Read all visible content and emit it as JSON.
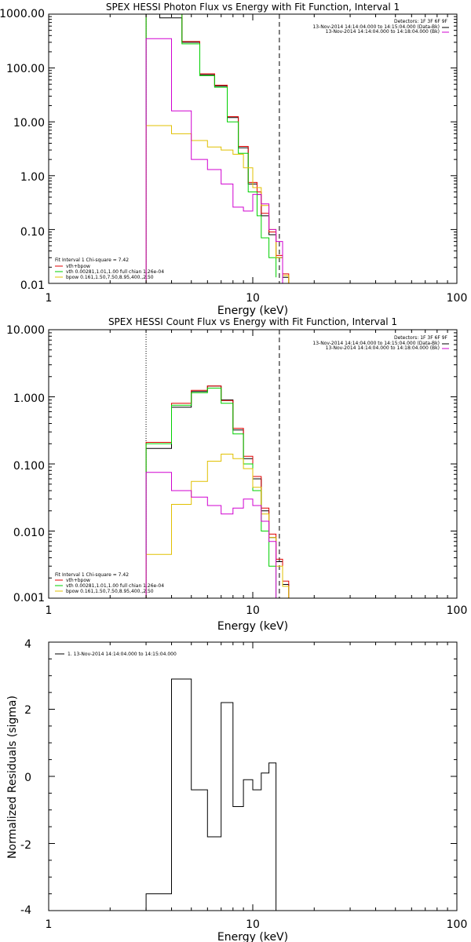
{
  "colors": {
    "total": "#000000",
    "data": "#e00000",
    "vth": "#00d000",
    "bpow": "#e0c000",
    "bk": "#d000d0"
  },
  "chart_data": [
    {
      "type": "line",
      "title": "SPEX HESSI Photon Flux vs Energy with Fit Function, Interval 1",
      "xlabel": "Energy (keV)",
      "ylabel": "",
      "xscale": "log",
      "yscale": "log",
      "xlim": [
        1,
        100
      ],
      "ylim": [
        0.01,
        1000
      ],
      "xticks": [
        "1",
        "10",
        "100"
      ],
      "yticks": [
        "0.01",
        "0.10",
        "1.00",
        "10.00",
        "100.00",
        "1000.00"
      ],
      "vlines": {
        "dotted": 3.0,
        "dashed": 13.5
      },
      "legend_right": {
        "detectors": "Detectors: 1F 3F 6F 9F",
        "entries": [
          {
            "text": "13-Nov-2014 14:14:04.000 to 14:15:04.000 (Data-Bk)",
            "color": "#000000"
          },
          {
            "text": "13-Nov-2014 14:14:04.000 to 14:18:04.000 (Bk)",
            "color": "#d000d0"
          }
        ]
      },
      "legend_left": {
        "header": "Fit Interval  1    Chi-square = 7.42",
        "entries": [
          {
            "text": "vth+bpow",
            "color": "#e00000"
          },
          {
            "text": "vth 0.00281,1.01,1.00  full chian 1.26e-04",
            "color": "#00d000"
          },
          {
            "text": "bpow 0.161,1.50,7.50,8.95,400.,2.50",
            "color": "#e0c000"
          }
        ]
      },
      "series": [
        {
          "label": "Data-Bk",
          "color": "#000000",
          "edges": [
            3.0,
            3.5,
            4.0,
            4.5,
            5.0,
            5.5,
            6.0,
            6.5,
            7.0,
            7.5,
            8.0,
            8.5,
            9.0,
            9.5,
            10.0,
            10.5,
            11.0,
            12.0,
            13.0,
            14.0,
            15.0
          ],
          "values": [
            1000,
            850,
            850,
            300,
            300,
            75,
            75,
            46,
            46,
            12,
            12,
            3.3,
            3.3,
            0.7,
            0.7,
            0.45,
            0.18,
            0.08,
            0.03,
            0.013
          ]
        },
        {
          "label": "vth+bpow",
          "color": "#e00000",
          "edges": [
            3.0,
            3.5,
            4.0,
            4.5,
            5.0,
            5.5,
            6.0,
            6.5,
            7.0,
            7.5,
            8.0,
            8.5,
            9.0,
            9.5,
            10.0,
            10.5,
            11.0,
            12.0,
            13.0,
            14.0,
            15.0
          ],
          "values": [
            1000,
            1000,
            1000,
            310,
            310,
            78,
            78,
            48,
            48,
            12.5,
            12.5,
            3.5,
            3.5,
            0.75,
            0.75,
            0.5,
            0.2,
            0.09,
            0.033,
            0.015
          ]
        },
        {
          "label": "vth",
          "color": "#00d000",
          "edges": [
            3.0,
            3.5,
            4.0,
            4.5,
            5.0,
            5.5,
            6.0,
            6.5,
            7.0,
            7.5,
            8.0,
            8.5,
            9.0,
            9.5,
            10.0,
            10.5,
            11.0,
            12.0,
            13.0
          ],
          "values": [
            1000,
            1000,
            1000,
            280,
            280,
            72,
            72,
            44,
            44,
            10,
            10,
            2.6,
            2.6,
            0.5,
            0.5,
            0.18,
            0.07,
            0.03,
            0.013
          ]
        },
        {
          "label": "bpow",
          "color": "#e0c000",
          "edges": [
            3.0,
            3.5,
            4.0,
            4.5,
            5.0,
            5.5,
            6.0,
            6.5,
            7.0,
            7.5,
            8.0,
            8.5,
            9.0,
            9.5,
            10.0,
            10.5,
            11.0,
            12.0,
            13.0,
            14.0,
            15.0,
            16.0
          ],
          "values": [
            8.5,
            8.5,
            6,
            6,
            4.5,
            4.5,
            3.4,
            3.4,
            3.0,
            3.0,
            2.5,
            2.5,
            1.4,
            1.4,
            0.6,
            0.6,
            0.28,
            0.1,
            0.03,
            0.014,
            0.009
          ]
        },
        {
          "label": "Bk",
          "color": "#d000d0",
          "edges": [
            3.0,
            3.5,
            4.0,
            4.5,
            5.0,
            5.5,
            6.0,
            6.5,
            7.0,
            7.5,
            8.0,
            8.5,
            9.0,
            9.5,
            10.0,
            10.5,
            11.0,
            12.0,
            13.0,
            14.0
          ],
          "values": [
            350,
            350,
            16,
            16,
            2.0,
            2.0,
            1.3,
            1.3,
            0.7,
            0.7,
            0.26,
            0.26,
            0.22,
            0.22,
            0.45,
            0.45,
            0.3,
            0.1,
            0.06
          ]
        }
      ]
    },
    {
      "type": "line",
      "title": "SPEX HESSI Count Flux vs Energy with Fit Function, Interval 1",
      "xlabel": "Energy (keV)",
      "ylabel": "",
      "xscale": "log",
      "yscale": "log",
      "xlim": [
        1,
        100
      ],
      "ylim": [
        0.001,
        10
      ],
      "xticks": [
        "1",
        "10",
        "100"
      ],
      "yticks": [
        "0.001",
        "0.010",
        "0.100",
        "1.000",
        "10.000"
      ],
      "vlines": {
        "dotted": 3.0,
        "dashed": 13.5
      },
      "legend_right": {
        "detectors": "Detectors: 1F 3F 6F 9F",
        "entries": [
          {
            "text": "13-Nov-2014 14:14:04.000 to 14:15:04.000 (Data-Bk)",
            "color": "#000000"
          },
          {
            "text": "13-Nov-2014 14:14:04.000 to 14:18:04.000 (Bk)",
            "color": "#d000d0"
          }
        ]
      },
      "legend_left": {
        "header": "Fit Interval  1    Chi-square = 7.42",
        "entries": [
          {
            "text": "vth+bpow",
            "color": "#e00000"
          },
          {
            "text": "vth 0.00281,1.01,1.00  full chian 1.26e-04",
            "color": "#00d000"
          },
          {
            "text": "bpow 0.161,1.50,7.50,8.95,400.,2.50",
            "color": "#e0c000"
          }
        ]
      },
      "series": [
        {
          "label": "Data-Bk",
          "color": "#000000",
          "edges": [
            3.0,
            4.0,
            5.0,
            6.0,
            7.0,
            8.0,
            9.0,
            10.0,
            11.0,
            12.0,
            13.0,
            14.0,
            15.0
          ],
          "values": [
            0.17,
            0.7,
            1.2,
            1.45,
            0.9,
            0.32,
            0.12,
            0.06,
            0.02,
            0.008,
            0.0035,
            0.0016
          ]
        },
        {
          "label": "vth+bpow",
          "color": "#e00000",
          "edges": [
            3.0,
            4.0,
            5.0,
            6.0,
            7.0,
            8.0,
            9.0,
            10.0,
            11.0,
            12.0,
            13.0,
            14.0,
            15.0
          ],
          "values": [
            0.21,
            0.8,
            1.25,
            1.45,
            0.88,
            0.34,
            0.13,
            0.065,
            0.022,
            0.009,
            0.0038,
            0.0018
          ]
        },
        {
          "label": "vth",
          "color": "#00d000",
          "edges": [
            3.0,
            4.0,
            5.0,
            6.0,
            7.0,
            8.0,
            9.0,
            10.0,
            11.0,
            12.0,
            13.0
          ],
          "values": [
            0.2,
            0.75,
            1.15,
            1.35,
            0.8,
            0.28,
            0.1,
            0.04,
            0.01,
            0.003
          ]
        },
        {
          "label": "bpow",
          "color": "#e0c000",
          "edges": [
            3.0,
            4.0,
            5.0,
            6.0,
            7.0,
            8.0,
            9.0,
            10.0,
            11.0,
            12.0,
            13.0,
            14.0,
            15.0,
            16.0
          ],
          "values": [
            0.0045,
            0.025,
            0.055,
            0.11,
            0.14,
            0.12,
            0.085,
            0.045,
            0.018,
            0.008,
            0.003,
            0.0015,
            0.001
          ]
        },
        {
          "label": "Bk",
          "color": "#d000d0",
          "edges": [
            3.0,
            4.0,
            5.0,
            6.0,
            7.0,
            8.0,
            9.0,
            10.0,
            11.0,
            12.0,
            13.0
          ],
          "values": [
            0.075,
            0.04,
            0.032,
            0.024,
            0.018,
            0.022,
            0.03,
            0.024,
            0.014,
            0.007
          ]
        }
      ]
    },
    {
      "type": "line",
      "title": "",
      "xlabel": "Energy (keV)",
      "ylabel": "Normalized Residuals (sigma)",
      "xscale": "log",
      "yscale": "linear",
      "xlim": [
        1,
        100
      ],
      "ylim": [
        -4,
        4
      ],
      "xticks": [
        "1",
        "10",
        "100"
      ],
      "yticks": [
        "-4",
        "-2",
        "0",
        "2",
        "4"
      ],
      "legend_left": {
        "entries": [
          {
            "text": "1. 13-Nov-2014 14:14:04.000 to 14:15:04.000",
            "color": "#000000"
          }
        ]
      },
      "series": [
        {
          "label": "Residuals",
          "color": "#000000",
          "edges": [
            3.0,
            4.0,
            5.0,
            6.0,
            7.0,
            8.0,
            9.0,
            10.0,
            11.0,
            12.0,
            13.0
          ],
          "values": [
            -3.5,
            2.9,
            -0.4,
            -1.8,
            2.2,
            -0.9,
            -0.1,
            -0.4,
            0.1,
            0.4
          ]
        }
      ]
    }
  ]
}
